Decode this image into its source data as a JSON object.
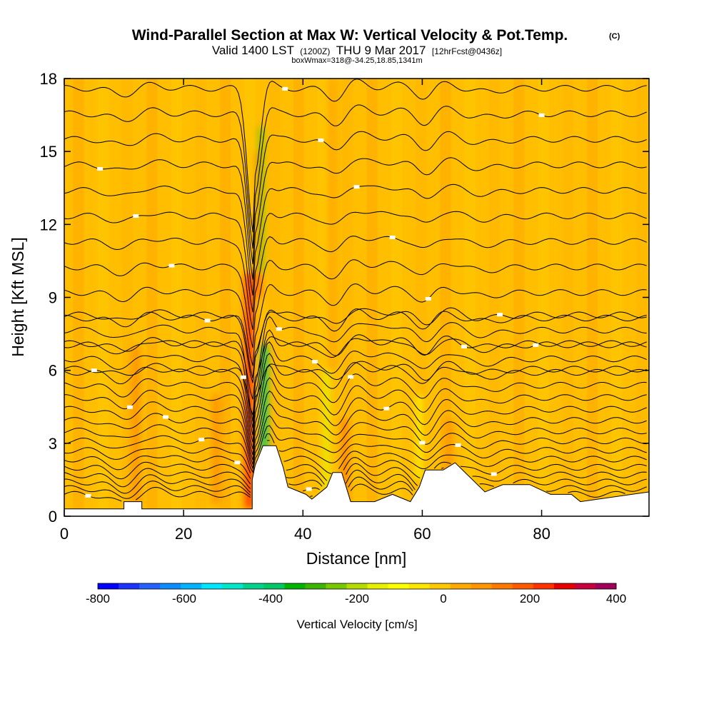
{
  "chart_data": {
    "type": "heatmap",
    "title": "Wind-Parallel Section at Max W: Vertical Velocity & Pot.Temp.",
    "title_tag": "(C)",
    "subtitle": {
      "valid_prefix": "Valid 1400 LST",
      "utc": "(1200Z)",
      "date": "THU 9 Mar 2017",
      "forecast": "[12hrFcst@0436z]"
    },
    "box_info": "boxWmax=318@-34.25,18.85,1341m",
    "xlabel": "Distance [nm]",
    "ylabel": "Height [Kft MSL]",
    "xlim": [
      0,
      98
    ],
    "ylim": [
      0,
      18
    ],
    "x_ticks": [
      0,
      20,
      40,
      60,
      80
    ],
    "y_ticks": [
      0,
      3,
      6,
      9,
      12,
      15,
      18
    ],
    "colorbar": {
      "label": "Vertical Velocity [cm/s]",
      "range": [
        -800,
        400
      ],
      "ticks": [
        -800,
        -600,
        -400,
        -200,
        0,
        200,
        400
      ],
      "colors": [
        "#0000ff",
        "#1a33ff",
        "#2660ff",
        "#0d8cff",
        "#00b4ff",
        "#00e6ff",
        "#00e6c8",
        "#00d28c",
        "#00c864",
        "#00b400",
        "#3cb400",
        "#78c800",
        "#b4dc00",
        "#e6f000",
        "#ffff00",
        "#ffe600",
        "#ffc800",
        "#ffaa00",
        "#ff9600",
        "#ff7800",
        "#ff5a00",
        "#ff3200",
        "#e60000",
        "#c8003c",
        "#a0005a"
      ]
    },
    "velocity_features": [
      {
        "x": 31.0,
        "w": 1.3,
        "z0": 0.3,
        "z1": 10.0,
        "value": 250
      },
      {
        "x": 32.6,
        "w": 0.8,
        "z0": 9.0,
        "z1": 15.0,
        "value": 200
      },
      {
        "x": 33.5,
        "w": 1.1,
        "z0": 1.0,
        "z1": 7.0,
        "value": -400
      },
      {
        "x": 33.0,
        "w": 0.8,
        "z0": 10.0,
        "z1": 16.0,
        "value": -230
      },
      {
        "x": 12.0,
        "w": 1.5,
        "z0": 0.5,
        "z1": 7.0,
        "value": 90
      },
      {
        "x": 25.5,
        "w": 1.5,
        "z0": 0.5,
        "z1": 5.0,
        "value": 80
      },
      {
        "x": 44.0,
        "w": 0.9,
        "z0": 1.0,
        "z1": 6.0,
        "value": -140
      },
      {
        "x": 47.0,
        "w": 0.9,
        "z0": 0.5,
        "z1": 4.0,
        "value": 130
      },
      {
        "x": 45.0,
        "w": 1.3,
        "z0": 6.0,
        "z1": 18.0,
        "value": 60
      },
      {
        "x": 59.5,
        "w": 0.8,
        "z0": 1.5,
        "z1": 5.0,
        "value": -110
      },
      {
        "x": 64.5,
        "w": 1.2,
        "z0": 1.5,
        "z1": 4.0,
        "value": 100
      }
    ],
    "isentrope_count": 30,
    "terrain": {
      "x": [
        0,
        10,
        10,
        13,
        13,
        31.5,
        31.5,
        32.0,
        32.5,
        33.3,
        35.5,
        36.7,
        37.5,
        40.5,
        41.5,
        42.5,
        44.0,
        45.0,
        46.5,
        48.0,
        52.0,
        55.0,
        58.0,
        59.5,
        60.5,
        63.5,
        65.5,
        68.0,
        70.5,
        73.5,
        78.0,
        81.5,
        85.0,
        86.5,
        98
      ],
      "h": [
        0.3,
        0.3,
        0.6,
        0.6,
        0.3,
        0.3,
        1.5,
        2.1,
        2.4,
        2.9,
        2.9,
        2.0,
        1.2,
        0.9,
        0.7,
        0.9,
        1.2,
        1.8,
        1.8,
        0.6,
        0.6,
        0.9,
        0.6,
        1.2,
        1.9,
        1.9,
        2.2,
        1.6,
        1.0,
        1.3,
        1.3,
        0.9,
        0.9,
        0.6,
        1.0
      ]
    }
  }
}
